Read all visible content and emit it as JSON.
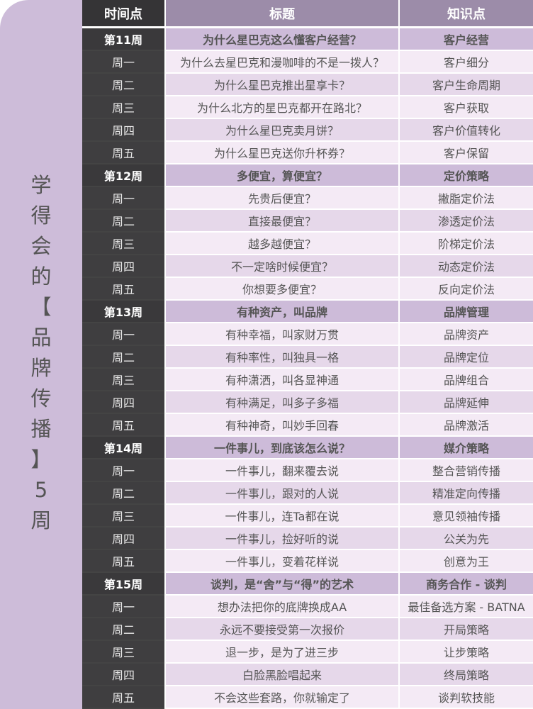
{
  "side_title": [
    "学",
    "得",
    "会",
    "的",
    "【",
    "品",
    "牌",
    "传",
    "播",
    "】",
    "5",
    "周"
  ],
  "header": {
    "time": "时间点",
    "title": "标题",
    "topic": "知识点"
  },
  "weeks": [
    {
      "week": "第11周",
      "title": "为什么星巴克这么懂客户经营？",
      "topic": "客户经营",
      "days": [
        [
          "周一",
          "为什么去星巴克和漫咖啡的不是一拨人？",
          "客户细分"
        ],
        [
          "周二",
          "为什么星巴克推出星享卡？",
          "客户生命周期"
        ],
        [
          "周三",
          "为什么北方的星巴克都开在路北？",
          "客户获取"
        ],
        [
          "周四",
          "为什么星巴克卖月饼？",
          "客户价值转化"
        ],
        [
          "周五",
          "为什么星巴克送你升杯券？",
          "客户保留"
        ]
      ]
    },
    {
      "week": "第12周",
      "title": "多便宜，算便宜？",
      "topic": "定价策略",
      "days": [
        [
          "周一",
          "先贵后便宜？",
          "撇脂定价法"
        ],
        [
          "周二",
          "直接最便宜？",
          "渗透定价法"
        ],
        [
          "周三",
          "越多越便宜？",
          "阶梯定价法"
        ],
        [
          "周四",
          "不一定啥时候便宜？",
          "动态定价法"
        ],
        [
          "周五",
          "你想要多便宜？",
          "反向定价法"
        ]
      ]
    },
    {
      "week": "第13周",
      "title": "有种资产，叫品牌",
      "topic": "品牌管理",
      "days": [
        [
          "周一",
          "有种幸福，叫家财万贯",
          "品牌资产"
        ],
        [
          "周二",
          "有种率性，叫独具一格",
          "品牌定位"
        ],
        [
          "周三",
          "有种潇洒，叫各显神通",
          "品牌组合"
        ],
        [
          "周四",
          "有种满足，叫多子多福",
          "品牌延伸"
        ],
        [
          "周五",
          "有种神奇，叫妙手回春",
          "品牌激活"
        ]
      ]
    },
    {
      "week": "第14周",
      "title": "一件事儿，到底该怎么说？",
      "topic": "媒介策略",
      "days": [
        [
          "周一",
          "一件事儿，翻来覆去说",
          "整合营销传播"
        ],
        [
          "周二",
          "一件事儿，跟对的人说",
          "精准定向传播"
        ],
        [
          "周三",
          "一件事儿，连Ta都在说",
          "意见领袖传播"
        ],
        [
          "周四",
          "一件事儿，捡好听的说",
          "公关为先"
        ],
        [
          "周五",
          "一件事儿，变着花样说",
          "创意为王"
        ]
      ]
    },
    {
      "week": "第15周",
      "title": "谈判，是“舍”与“得”的艺术",
      "topic": "商务合作 - 谈判",
      "days": [
        [
          "周一",
          "想办法把你的底牌换成AA",
          "最佳备选方案 - BATNA"
        ],
        [
          "周二",
          "永远不要接受第一次报价",
          "开局策略"
        ],
        [
          "周三",
          "退一步，是为了进三步",
          "让步策略"
        ],
        [
          "周四",
          "白脸黑脸唱起来",
          "终局策略"
        ],
        [
          "周五",
          "不会这些套路，你就输定了",
          "谈判软技能"
        ]
      ]
    }
  ]
}
